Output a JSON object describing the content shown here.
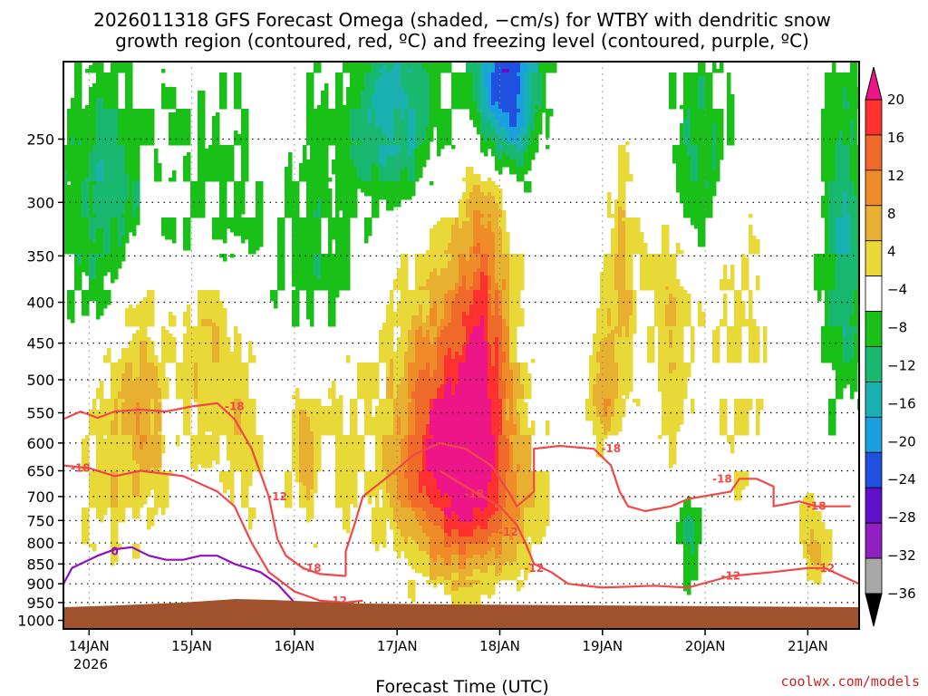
{
  "chart_data": {
    "type": "heatmap",
    "title_line1": "2026011318 GFS Forecast Omega (shaded, −cm/s) for WTBY with dendritic snow",
    "title_line2": "growth region (contoured, red, ºC) and freezing level (contoured, purple, ºC)",
    "xlabel": "Forecast Time (UTC)",
    "ylabel": "",
    "x_ticks": [
      "14JAN",
      "15JAN",
      "16JAN",
      "17JAN",
      "18JAN",
      "19JAN",
      "20JAN",
      "21JAN"
    ],
    "x_year_label": "2026",
    "y_ticks": [
      "250",
      "300",
      "350",
      "400",
      "450",
      "500",
      "550",
      "600",
      "650",
      "700",
      "750",
      "800",
      "850",
      "900",
      "950",
      "1000"
    ],
    "y_tick_values": [
      250,
      300,
      350,
      400,
      450,
      500,
      550,
      600,
      650,
      700,
      750,
      800,
      850,
      900,
      950,
      1000
    ],
    "y_unit": "hPa (log-pressure, inverted)",
    "xlim_hours": [
      -6,
      180
    ],
    "ylim_hpa": [
      200,
      1025
    ],
    "colorbar": {
      "labels": [
        "20",
        "16",
        "12",
        "8",
        "4",
        "−4",
        "−8",
        "−12",
        "−16",
        "−20",
        "−24",
        "−28",
        "−32",
        "−36"
      ],
      "colors": [
        "#ee1588",
        "#ff3030",
        "#f06a2a",
        "#f08c28",
        "#e8b030",
        "#e8d838",
        "#ffffff",
        "#18c018",
        "#18b870",
        "#18b0b0",
        "#18a0e0",
        "#2050e0",
        "#6010c8",
        "#9020c0",
        "#a8a8a8",
        "#000000"
      ]
    },
    "series": [
      {
        "name": "Omega max (−cm/s) near 17.5 JAN",
        "values": [
          20
        ]
      },
      {
        "name": "Dendritic growth region isotherms (red, ºC)",
        "values": [
          -12,
          -18
        ]
      },
      {
        "name": "Freezing level (purple, ºC)",
        "values": [
          0
        ]
      }
    ],
    "contour_labels": [
      "-18",
      "-18",
      "-12",
      "-18",
      "-12",
      "-18",
      "-12",
      "-12",
      "-18",
      "-18",
      "-12",
      "-18",
      "-12",
      "0"
    ],
    "ground_color": "#a0522d"
  },
  "credit": "coolwx.com/models"
}
